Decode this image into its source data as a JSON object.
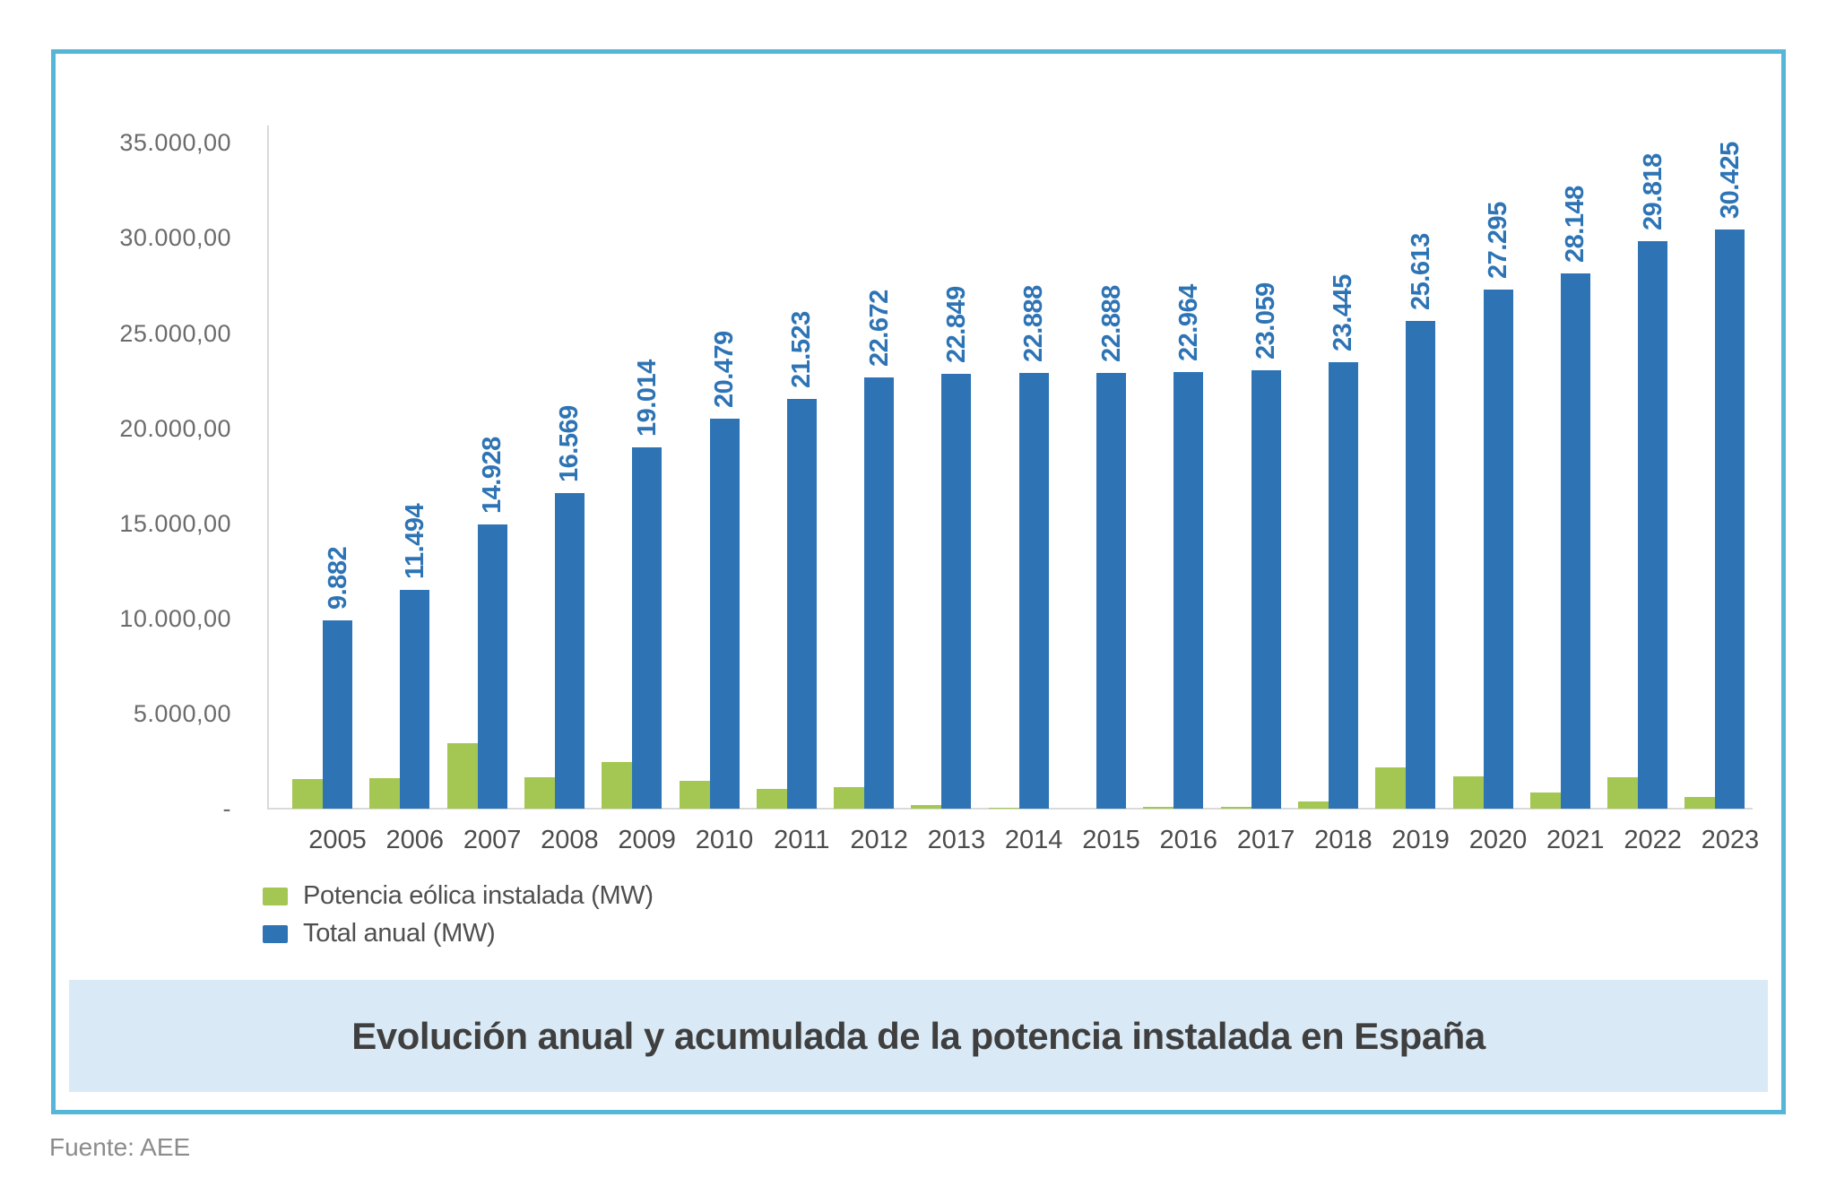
{
  "page": {
    "source_note": "Fuente: AEE"
  },
  "title_band": {
    "text": "Evolución anual y acumulada de la potencia instalada en España",
    "background": "#d9eaf6",
    "text_color": "#3f3f3f"
  },
  "frame": {
    "border_color": "#55b6d8"
  },
  "legend": {
    "position": "bottom-left",
    "items": [
      {
        "label": "Potencia eólica instalada (MW)",
        "color": "#a4c653"
      },
      {
        "label": "Total anual (MW)",
        "color": "#2e74b5"
      }
    ]
  },
  "chart_data": {
    "type": "bar",
    "title": "Evolución anual y acumulada de la potencia instalada en España",
    "xlabel": "",
    "ylabel": "",
    "units": "MW",
    "grid": false,
    "legend_position": "bottom-left",
    "categories": [
      "2005",
      "2006",
      "2007",
      "2008",
      "2009",
      "2010",
      "2011",
      "2012",
      "2013",
      "2014",
      "2015",
      "2016",
      "2017",
      "2018",
      "2019",
      "2020",
      "2021",
      "2022",
      "2023"
    ],
    "series": [
      {
        "name": "Potencia eólica instalada (MW)",
        "color": "#a4c653",
        "values_estimated": true,
        "values": [
          1565,
          1612,
          3434,
          1641,
          2445,
          1465,
          1044,
          1149,
          177,
          39,
          0,
          76,
          95,
          386,
          2168,
          1682,
          853,
          1670,
          607
        ]
      },
      {
        "name": "Total anual (MW)",
        "color": "#2e74b5",
        "values": [
          9882,
          11494,
          14928,
          16569,
          19014,
          20479,
          21523,
          22672,
          22849,
          22888,
          22888,
          22964,
          23059,
          23445,
          25613,
          27295,
          28148,
          29818,
          30425
        ],
        "data_labels": [
          "9.882",
          "11.494",
          "14.928",
          "16.569",
          "19.014",
          "20.479",
          "21.523",
          "22.672",
          "22.849",
          "22.888",
          "22.888",
          "22.964",
          "23.059",
          "23.445",
          "25.613",
          "27.295",
          "28.148",
          "29.818",
          "30.425"
        ]
      }
    ],
    "y_axis": {
      "min": 0,
      "max": 35000,
      "ticks": [
        {
          "label": "35.000,00",
          "value": 35000
        },
        {
          "label": "30.000,00",
          "value": 30000
        },
        {
          "label": "25.000,00",
          "value": 25000
        },
        {
          "label": "20.000,00",
          "value": 20000
        },
        {
          "label": "15.000,00",
          "value": 15000
        },
        {
          "label": "10.000,00",
          "value": 10000
        },
        {
          "label": "5.000,00",
          "value": 5000
        },
        {
          "label": "-",
          "value": 0
        }
      ]
    }
  }
}
